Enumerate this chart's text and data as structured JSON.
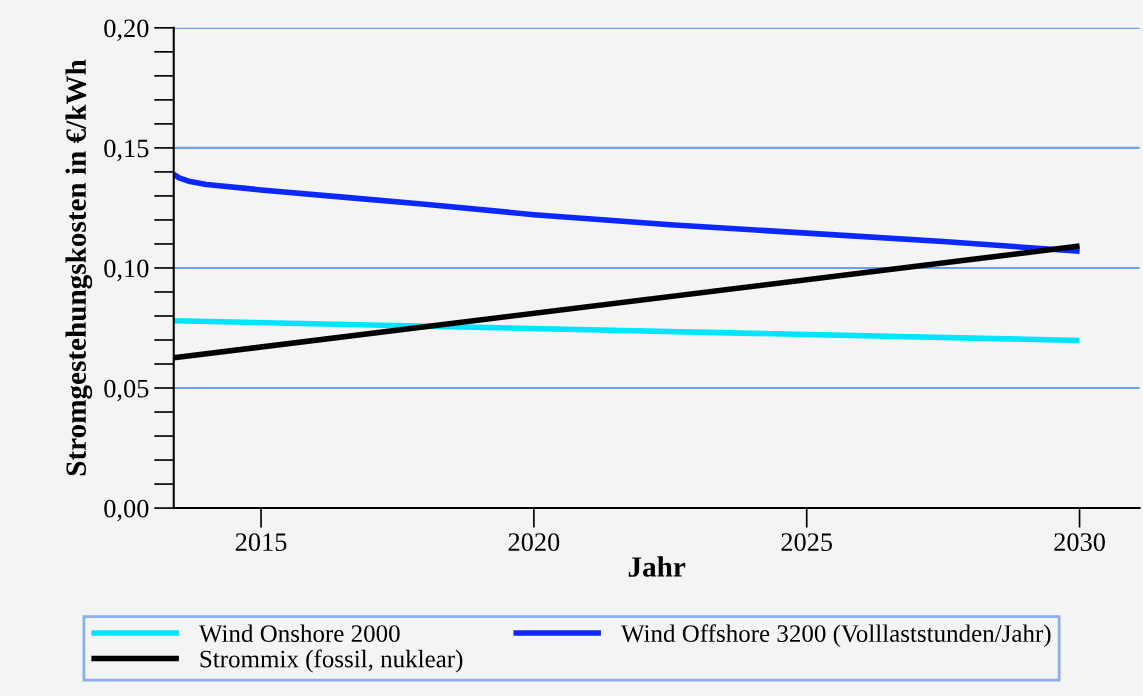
{
  "chart_data": {
    "type": "line",
    "xlabel": "Jahr",
    "ylabel": "Stromgestehungskosten in €/kWh",
    "series": [
      {
        "name": "Wind Onshore 2000",
        "color": "#00e5ff",
        "x": [
          2013.4,
          2030
        ],
        "values": [
          0.078,
          0.0698
        ]
      },
      {
        "name": "Wind Offshore 3200 (Volllaststunden/Jahr)",
        "color": "#0a28ff",
        "x": [
          2013.4,
          2013.5,
          2013.7,
          2014,
          2015,
          2016.5,
          2018,
          2020,
          2022.5,
          2025,
          2027.5,
          2030
        ],
        "values": [
          0.139,
          0.1375,
          0.136,
          0.1348,
          0.1325,
          0.1295,
          0.1265,
          0.1222,
          0.118,
          0.1145,
          0.111,
          0.107
        ]
      },
      {
        "name": "Strommix (fossil, nuklear)",
        "color": "#000000",
        "x": [
          2013.4,
          2030
        ],
        "values": [
          0.0626,
          0.1091
        ]
      }
    ],
    "xlim": [
      2013.4,
      2031.1
    ],
    "xticks": [
      2015,
      2020,
      2025,
      2030
    ],
    "ylim": [
      0,
      0.2
    ],
    "yticks": [
      {
        "value": 0,
        "label": "0,00"
      },
      {
        "value": 0.05,
        "label": "0,05"
      },
      {
        "value": 0.1,
        "label": "0,10"
      },
      {
        "value": 0.15,
        "label": "0,15"
      },
      {
        "value": 0.2,
        "label": "0,20"
      }
    ],
    "grid": "y",
    "legend": "bottom",
    "marker": "none",
    "line_style": "solid"
  }
}
